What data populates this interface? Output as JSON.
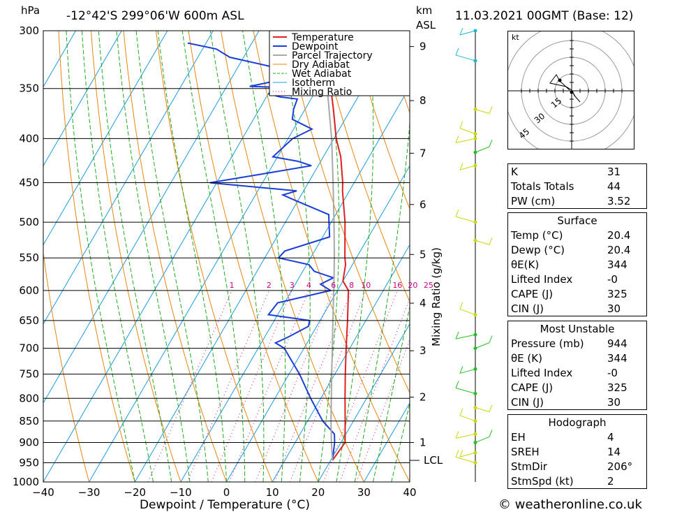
{
  "header": {
    "location": "-12°42'S  299°06'W  600m  ASL",
    "datetime": "11.03.2021  00GMT  (Base: 12)",
    "hpa_label": "hPa",
    "km_label": "km",
    "asl_label": "ASL"
  },
  "footer": {
    "credit": "© weatheronline.co.uk"
  },
  "chart_data": {
    "type": "line",
    "title": "",
    "xlabel": "Dewpoint / Temperature (°C)",
    "ylabel": "hPa",
    "right_label": "Mixing Ratio (g/kg)",
    "xlim": [
      -40,
      40
    ],
    "ylim": [
      1000,
      300
    ],
    "x_ticks": [
      -40,
      -30,
      -20,
      -10,
      0,
      10,
      20,
      30,
      40
    ],
    "pressure_levels": [
      300,
      350,
      400,
      450,
      500,
      550,
      600,
      650,
      700,
      750,
      800,
      850,
      900,
      950,
      1000
    ],
    "km_ticks": [
      1,
      2,
      3,
      4,
      5,
      6,
      7,
      8,
      9
    ],
    "lcl_label": "LCL",
    "mixing_ratio_labels": [
      1,
      2,
      3,
      4,
      6,
      8,
      10,
      16,
      20,
      25
    ],
    "legend": [
      "Temperature",
      "Dewpoint",
      "Parcel Trajectory",
      "Dry Adiabat",
      "Wet Adiabat",
      "Isotherm",
      "Mixing Ratio"
    ],
    "colors": {
      "temperature": "#e02020",
      "dewpoint": "#1a3fd9",
      "parcel": "#a8a8a8",
      "dry_adiabat": "#e8860c",
      "wet_adiabat": "#1fa81f",
      "isotherm": "#1a9be0",
      "mixing_ratio": "#cc0080"
    },
    "series": [
      {
        "name": "Temperature",
        "points": [
          [
            944,
            20.4
          ],
          [
            900,
            20.9
          ],
          [
            850,
            18.2
          ],
          [
            800,
            15.3
          ],
          [
            750,
            12.3
          ],
          [
            700,
            9.2
          ],
          [
            650,
            6.0
          ],
          [
            600,
            2.4
          ],
          [
            585,
            0.0
          ],
          [
            560,
            -1.5
          ],
          [
            550,
            -2.5
          ],
          [
            500,
            -7.0
          ],
          [
            460,
            -11.5
          ],
          [
            450,
            -12.5
          ],
          [
            420,
            -16.2
          ],
          [
            400,
            -19.5
          ],
          [
            370,
            -23.8
          ],
          [
            350,
            -27.0
          ],
          [
            320,
            -31.5
          ],
          [
            300,
            -34.5
          ]
        ]
      },
      {
        "name": "Dewpoint",
        "points": [
          [
            944,
            20.4
          ],
          [
            900,
            18.6
          ],
          [
            880,
            17.5
          ],
          [
            850,
            13.3
          ],
          [
            800,
            7.8
          ],
          [
            750,
            2.3
          ],
          [
            700,
            -4.3
          ],
          [
            690,
            -6.9
          ],
          [
            680,
            -5.0
          ],
          [
            660,
            -1.8
          ],
          [
            650,
            -2.3
          ],
          [
            640,
            -12.0
          ],
          [
            620,
            -11.5
          ],
          [
            600,
            -1.5
          ],
          [
            590,
            -4.5
          ],
          [
            580,
            -2.5
          ],
          [
            570,
            -7.5
          ],
          [
            560,
            -9.5
          ],
          [
            550,
            -17.0
          ],
          [
            540,
            -16.5
          ],
          [
            520,
            -8.5
          ],
          [
            500,
            -10.5
          ],
          [
            490,
            -11.5
          ],
          [
            470,
            -21.5
          ],
          [
            465,
            -24.0
          ],
          [
            460,
            -21.5
          ],
          [
            450,
            -41.5
          ],
          [
            440,
            -31.5
          ],
          [
            430,
            -21.5
          ],
          [
            425,
            -25.0
          ],
          [
            420,
            -31.0
          ],
          [
            400,
            -29.0
          ],
          [
            390,
            -26.0
          ],
          [
            380,
            -31.5
          ],
          [
            370,
            -32.5
          ],
          [
            360,
            -33.0
          ],
          [
            358,
            -37.0
          ],
          [
            355,
            -40.0
          ],
          [
            353,
            -35.5
          ],
          [
            350,
            -31.5
          ],
          [
            348,
            -45.0
          ],
          [
            345,
            -42.0
          ],
          [
            338,
            -35.5
          ],
          [
            335,
            -40.0
          ],
          [
            330,
            -43.0
          ],
          [
            322,
            -53.0
          ],
          [
            315,
            -57.0
          ],
          [
            310,
            -64.0
          ]
        ]
      },
      {
        "name": "Parcel Trajectory",
        "points": [
          [
            944,
            20.4
          ],
          [
            900,
            17.9
          ],
          [
            850,
            15.1
          ],
          [
            800,
            12.3
          ],
          [
            750,
            9.3
          ],
          [
            700,
            6.2
          ],
          [
            650,
            2.8
          ],
          [
            600,
            -0.8
          ],
          [
            550,
            -4.8
          ],
          [
            500,
            -9.4
          ],
          [
            450,
            -14.6
          ],
          [
            400,
            -20.5
          ],
          [
            350,
            -27.8
          ],
          [
            320,
            -32.8
          ],
          [
            300,
            -36.5
          ]
        ]
      }
    ],
    "wind_barbs": [
      {
        "p": 950,
        "color": "yellow"
      },
      {
        "p": 925,
        "color": "yellow"
      },
      {
        "p": 900,
        "color": "green"
      },
      {
        "p": 880,
        "color": "yellow"
      },
      {
        "p": 850,
        "color": "yellow"
      },
      {
        "p": 820,
        "color": "yellow"
      },
      {
        "p": 790,
        "color": "green"
      },
      {
        "p": 740,
        "color": "green"
      },
      {
        "p": 700,
        "color": "green"
      },
      {
        "p": 675,
        "color": "green"
      },
      {
        "p": 640,
        "color": "yellow"
      },
      {
        "p": 525,
        "color": "yellow"
      },
      {
        "p": 500,
        "color": "yellow"
      },
      {
        "p": 430,
        "color": "yellow"
      },
      {
        "p": 415,
        "color": "green"
      },
      {
        "p": 400,
        "color": "yellow"
      },
      {
        "p": 395,
        "color": "yellow"
      },
      {
        "p": 370,
        "color": "yellow"
      },
      {
        "p": 325,
        "color": "cyan"
      },
      {
        "p": 300,
        "color": "cyan"
      }
    ]
  },
  "hodograph": {
    "unit_label": "kt",
    "ring_labels": [
      "15",
      "30",
      "45"
    ]
  },
  "indices_table": [
    {
      "label": "K",
      "value": "31"
    },
    {
      "label": "Totals Totals",
      "value": "44"
    },
    {
      "label": "PW (cm)",
      "value": "3.52"
    }
  ],
  "surface": {
    "title": "Surface",
    "rows": [
      {
        "label": "Temp (°C)",
        "value": "20.4"
      },
      {
        "label": "Dewp (°C)",
        "value": "20.4"
      },
      {
        "label": "θE(K)",
        "value": "344"
      },
      {
        "label": "Lifted Index",
        "value": "-0"
      },
      {
        "label": "CAPE (J)",
        "value": "325"
      },
      {
        "label": "CIN (J)",
        "value": "30"
      }
    ]
  },
  "most_unstable": {
    "title": "Most Unstable",
    "rows": [
      {
        "label": "Pressure (mb)",
        "value": "944"
      },
      {
        "label": "θE (K)",
        "value": "344"
      },
      {
        "label": "Lifted Index",
        "value": "-0"
      },
      {
        "label": "CAPE (J)",
        "value": "325"
      },
      {
        "label": "CIN (J)",
        "value": "30"
      }
    ]
  },
  "hodograph_table": {
    "title": "Hodograph",
    "rows": [
      {
        "label": "EH",
        "value": "4"
      },
      {
        "label": "SREH",
        "value": "14"
      },
      {
        "label": "StmDir",
        "value": "206°"
      },
      {
        "label": "StmSpd (kt)",
        "value": "2"
      }
    ]
  }
}
